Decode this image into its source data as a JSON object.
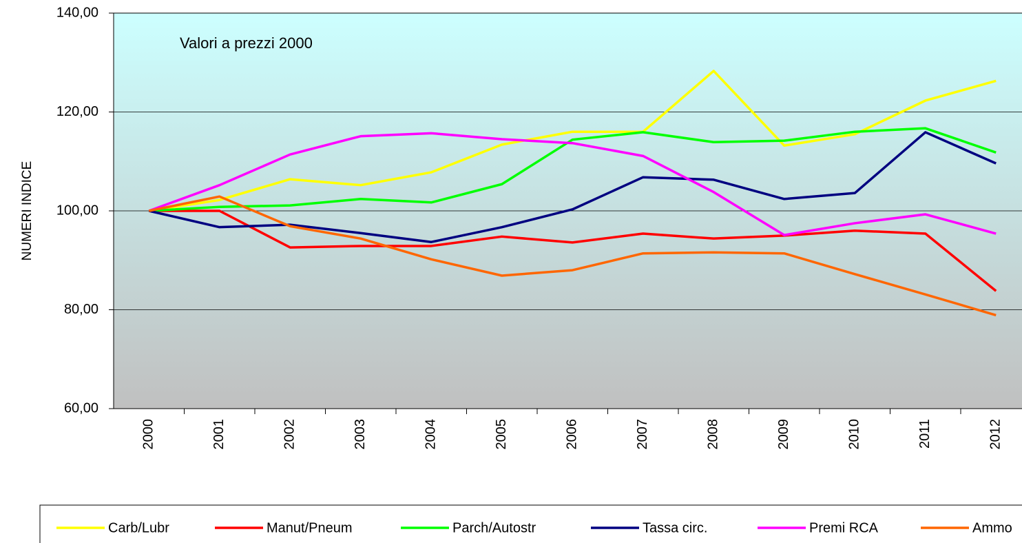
{
  "chart_data": {
    "type": "line",
    "annotation": "Valori a prezzi 2000",
    "y_label": "NUMERI INDICE",
    "categories": [
      "2000",
      "2001",
      "2002",
      "2003",
      "2004",
      "2005",
      "2006",
      "2007",
      "2008",
      "2009",
      "2010",
      "2011",
      "2012"
    ],
    "series": [
      {
        "name": "Carb/Lubr",
        "color": "#ffff00",
        "values": [
          100,
          102.2,
          106.4,
          105.2,
          107.8,
          113.4,
          116.0,
          116.0,
          128.3,
          113.2,
          115.5,
          122.3,
          126.3
        ]
      },
      {
        "name": "Manut/Pneum",
        "color": "#ff0000",
        "values": [
          100,
          100.0,
          92.6,
          92.9,
          92.9,
          94.8,
          93.6,
          95.4,
          94.4,
          95.0,
          96.0,
          95.4,
          83.8
        ]
      },
      {
        "name": "Parch/Autostr",
        "color": "#00ff00",
        "values": [
          100,
          100.8,
          101.1,
          102.4,
          101.7,
          105.4,
          114.4,
          115.9,
          113.9,
          114.2,
          116.0,
          116.7,
          111.8
        ]
      },
      {
        "name": "Tassa circ.",
        "color": "#000080",
        "values": [
          100,
          96.7,
          97.2,
          95.5,
          93.7,
          96.7,
          100.3,
          106.8,
          106.3,
          102.4,
          103.6,
          115.9,
          109.6
        ]
      },
      {
        "name": "Premi RCA",
        "color": "#ff00ff",
        "values": [
          100,
          105.2,
          111.4,
          115.1,
          115.7,
          114.5,
          113.7,
          111.1,
          103.8,
          95.1,
          97.5,
          99.3,
          95.4
        ]
      },
      {
        "name": "Ammo",
        "color": "#ff6600",
        "values": [
          100,
          102.9,
          96.9,
          94.4,
          90.2,
          86.9,
          88.0,
          91.4,
          91.6,
          91.4,
          87.2,
          83.1,
          78.9
        ]
      }
    ],
    "ylim": [
      60,
      140
    ],
    "yticks": [
      {
        "value": 60,
        "label": "60,00"
      },
      {
        "value": 80,
        "label": "80,00"
      },
      {
        "value": 100,
        "label": "100,00"
      },
      {
        "value": 120,
        "label": "120,00"
      },
      {
        "value": 140,
        "label": "140,00"
      }
    ],
    "grid": true
  }
}
